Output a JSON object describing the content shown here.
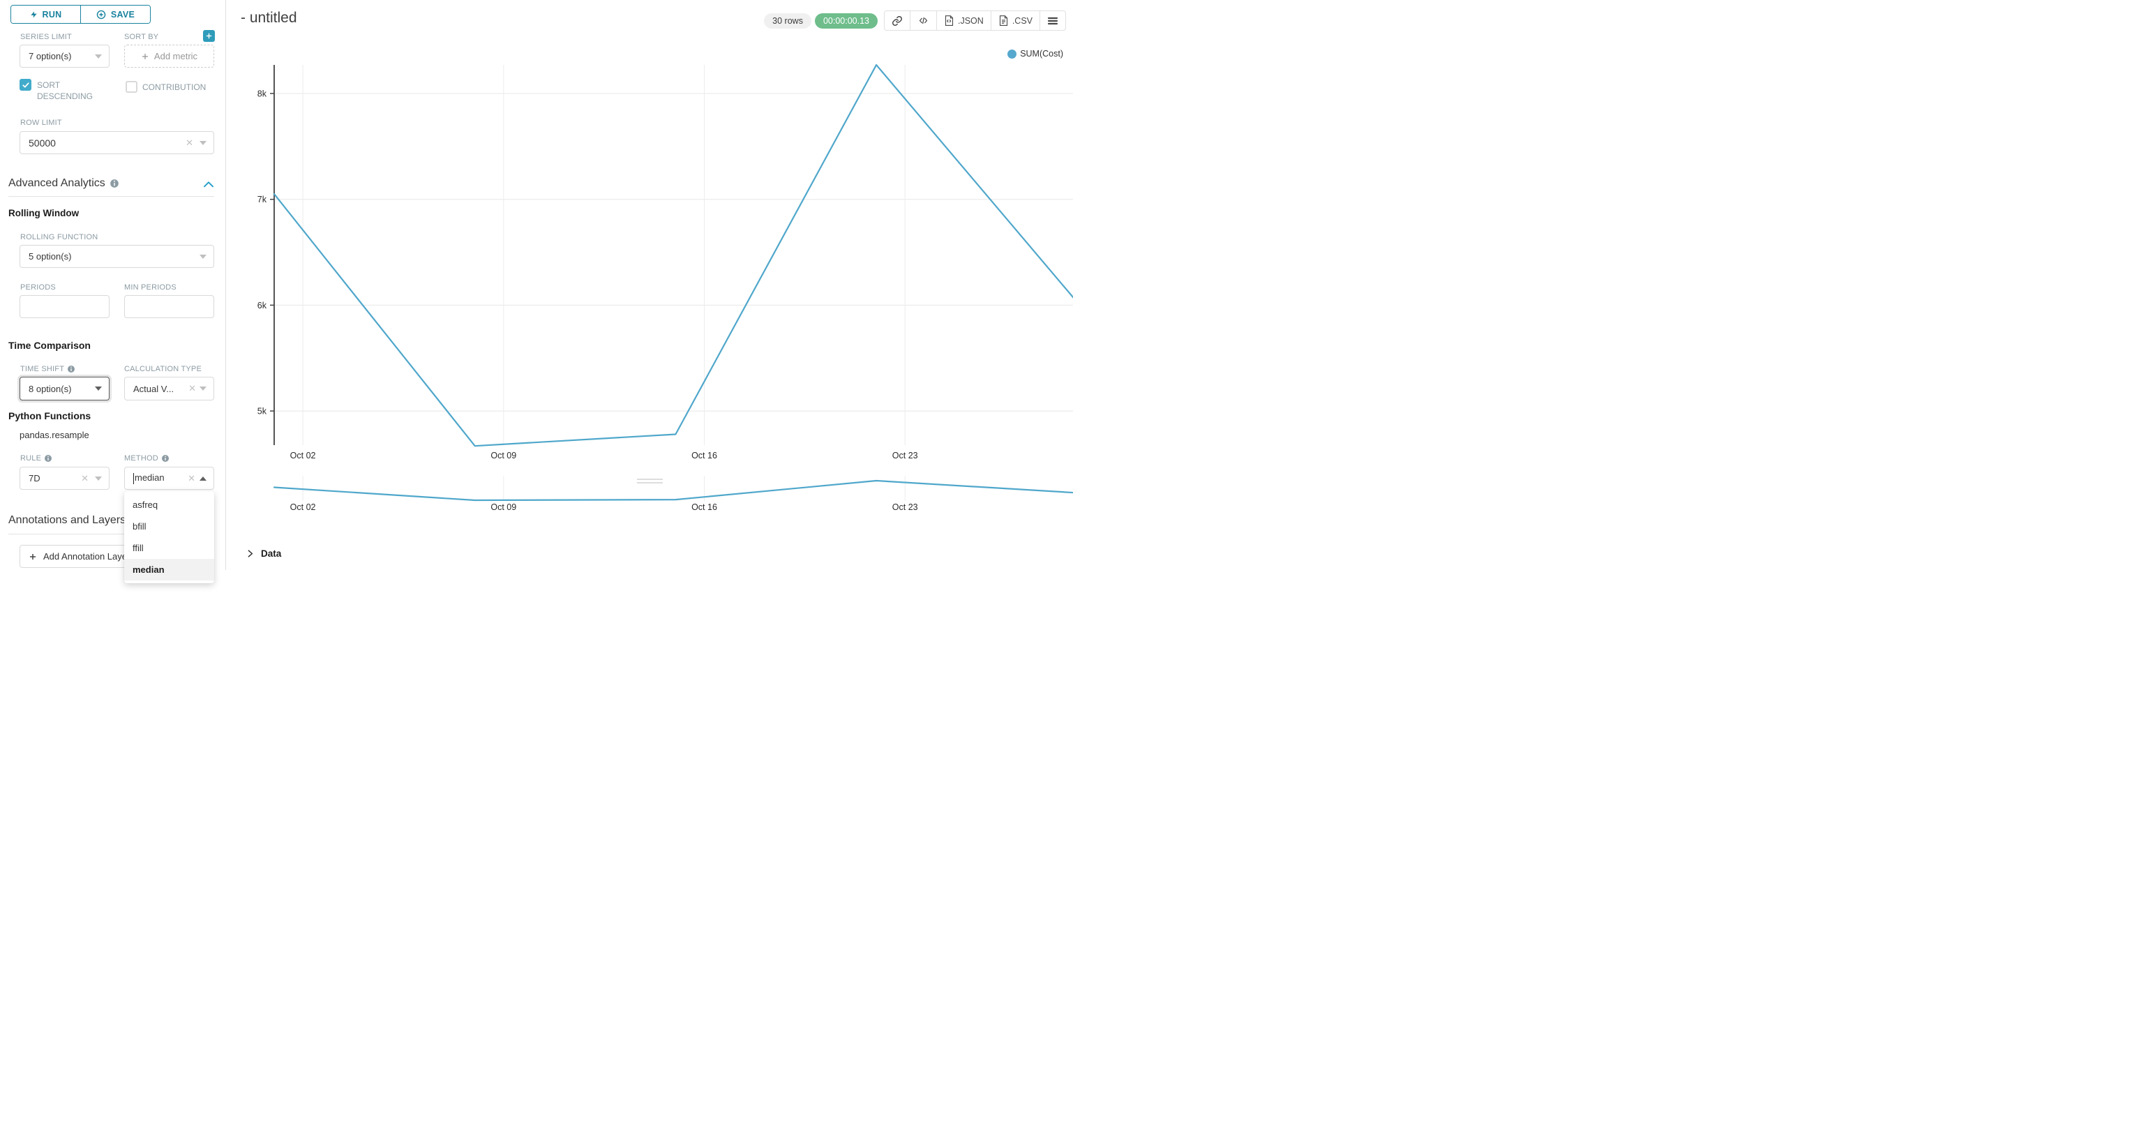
{
  "sidebar": {
    "run_button": "RUN",
    "save_button": "SAVE",
    "series_limit": {
      "label": "SERIES LIMIT",
      "value": "7 option(s)"
    },
    "sort_by": {
      "label": "SORT BY",
      "placeholder": "Add metric"
    },
    "sort_descending_label": "SORT DESCENDING",
    "contribution_label": "CONTRIBUTION",
    "row_limit": {
      "label": "ROW LIMIT",
      "value": "50000"
    },
    "advanced_analytics_title": "Advanced Analytics",
    "rolling_window_title": "Rolling Window",
    "rolling_function": {
      "label": "ROLLING FUNCTION",
      "value": "5 option(s)"
    },
    "periods_label": "PERIODS",
    "min_periods_label": "MIN PERIODS",
    "time_comparison_title": "Time Comparison",
    "time_shift": {
      "label": "TIME SHIFT",
      "value": "8 option(s)"
    },
    "calculation_type": {
      "label": "CALCULATION TYPE",
      "value": "Actual V..."
    },
    "python_functions_title": "Python Functions",
    "python_function_name": "pandas.resample",
    "rule": {
      "label": "RULE",
      "value": "7D"
    },
    "method": {
      "label": "METHOD",
      "value": "median",
      "options": [
        "asfreq",
        "bfill",
        "ffill",
        "median"
      ],
      "selected_option": "median"
    },
    "annotations_title": "Annotations and Layers",
    "add_annotation_button": "Add Annotation Layer"
  },
  "header": {
    "title": "- untitled",
    "rows_badge": "30 rows",
    "timer_badge": "00:00:00.13",
    "json_button": ".JSON",
    "csv_button": ".CSV"
  },
  "data_panel": {
    "title": "Data"
  },
  "colors": {
    "primary": "#19829e",
    "accent": "#20a7c9",
    "line": "#4fa7cb",
    "legend_dot": "#57a8ce",
    "checkbox": "#42abcb",
    "success_badge": "#6ebd8b"
  },
  "chart_data": {
    "type": "line",
    "title": "",
    "legend": [
      "SUM(Cost)"
    ],
    "legend_position": "top-right",
    "grid": true,
    "series": [
      {
        "name": "SUM(Cost)",
        "x": [
          "Oct 01",
          "Oct 08",
          "Oct 15",
          "Oct 22",
          "Oct 29"
        ],
        "x_day_offsets": [
          0,
          7,
          14,
          21,
          28
        ],
        "values": [
          7050,
          4670,
          4780,
          8270,
          6030
        ]
      }
    ],
    "x_ticks": [
      {
        "label": "Oct 02",
        "day": 1
      },
      {
        "label": "Oct 09",
        "day": 8
      },
      {
        "label": "Oct 16",
        "day": 15
      },
      {
        "label": "Oct 23",
        "day": 22
      }
    ],
    "y_ticks": [
      {
        "label": "8k",
        "value": 8000
      },
      {
        "label": "7k",
        "value": 7000
      },
      {
        "label": "6k",
        "value": 6000
      },
      {
        "label": "5k",
        "value": 5000
      }
    ],
    "ylim": [
      4640,
      8270
    ],
    "has_preview_strip": true,
    "xlabel": "",
    "ylabel": ""
  }
}
